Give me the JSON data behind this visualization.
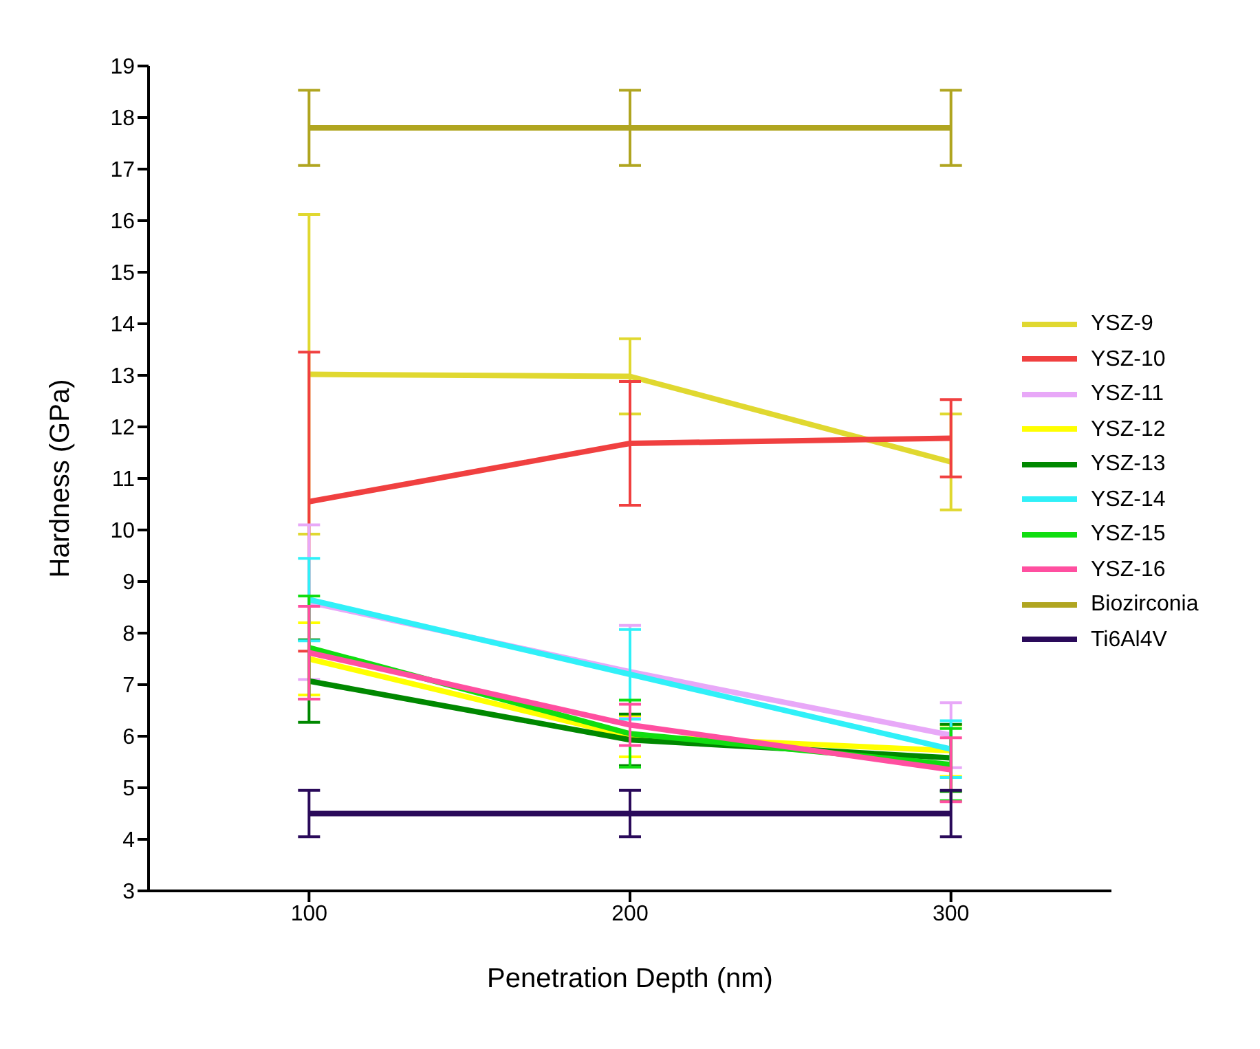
{
  "chart_data": {
    "type": "line",
    "xlabel": "Penetration Depth (nm)",
    "ylabel": "Hardness (GPa)",
    "x": [
      100,
      200,
      300
    ],
    "xlim": [
      50,
      350
    ],
    "xticks": [
      100,
      200,
      300
    ],
    "ylim": [
      3,
      19
    ],
    "yticks": [
      3,
      4,
      5,
      6,
      7,
      8,
      9,
      10,
      11,
      12,
      13,
      14,
      15,
      16,
      17,
      18,
      19
    ],
    "grid": false,
    "legend": "right",
    "marker": "none",
    "line_style": "solid",
    "series": [
      {
        "name": "YSZ-9",
        "color": "#e0d830",
        "values": [
          13.02,
          12.98,
          11.32
        ],
        "errors": [
          3.1,
          0.73,
          0.93
        ]
      },
      {
        "name": "YSZ-10",
        "color": "#f04040",
        "values": [
          10.55,
          11.68,
          11.78
        ],
        "errors": [
          2.9,
          1.2,
          0.75
        ]
      },
      {
        "name": "YSZ-11",
        "color": "#e8a8f8",
        "values": [
          8.6,
          7.25,
          6.02
        ],
        "errors": [
          1.5,
          0.9,
          0.63
        ]
      },
      {
        "name": "YSZ-12",
        "color": "#ffff00",
        "values": [
          7.5,
          6.0,
          5.72
        ],
        "errors": [
          0.7,
          0.4,
          0.5
        ]
      },
      {
        "name": "YSZ-13",
        "color": "#008800",
        "values": [
          7.07,
          5.93,
          5.58
        ],
        "errors": [
          0.8,
          0.5,
          0.65
        ]
      },
      {
        "name": "YSZ-14",
        "color": "#30f0f8",
        "values": [
          8.65,
          7.2,
          5.75
        ],
        "errors": [
          0.8,
          0.87,
          0.55
        ]
      },
      {
        "name": "YSZ-15",
        "color": "#10dd10",
        "values": [
          7.72,
          6.05,
          5.45
        ],
        "errors": [
          1.0,
          0.65,
          0.7
        ]
      },
      {
        "name": "YSZ-16",
        "color": "#ff4fa0",
        "values": [
          7.62,
          6.22,
          5.35
        ],
        "errors": [
          0.9,
          0.4,
          0.62
        ]
      },
      {
        "name": "Biozirconia",
        "color": "#b0a520",
        "values": [
          17.8,
          17.8,
          17.8
        ],
        "errors": [
          0.73,
          0.73,
          0.73
        ]
      },
      {
        "name": "Ti6Al4V",
        "color": "#2a0a5a",
        "values": [
          4.5,
          4.5,
          4.5
        ],
        "errors": [
          0.45,
          0.45,
          0.45
        ]
      }
    ]
  }
}
